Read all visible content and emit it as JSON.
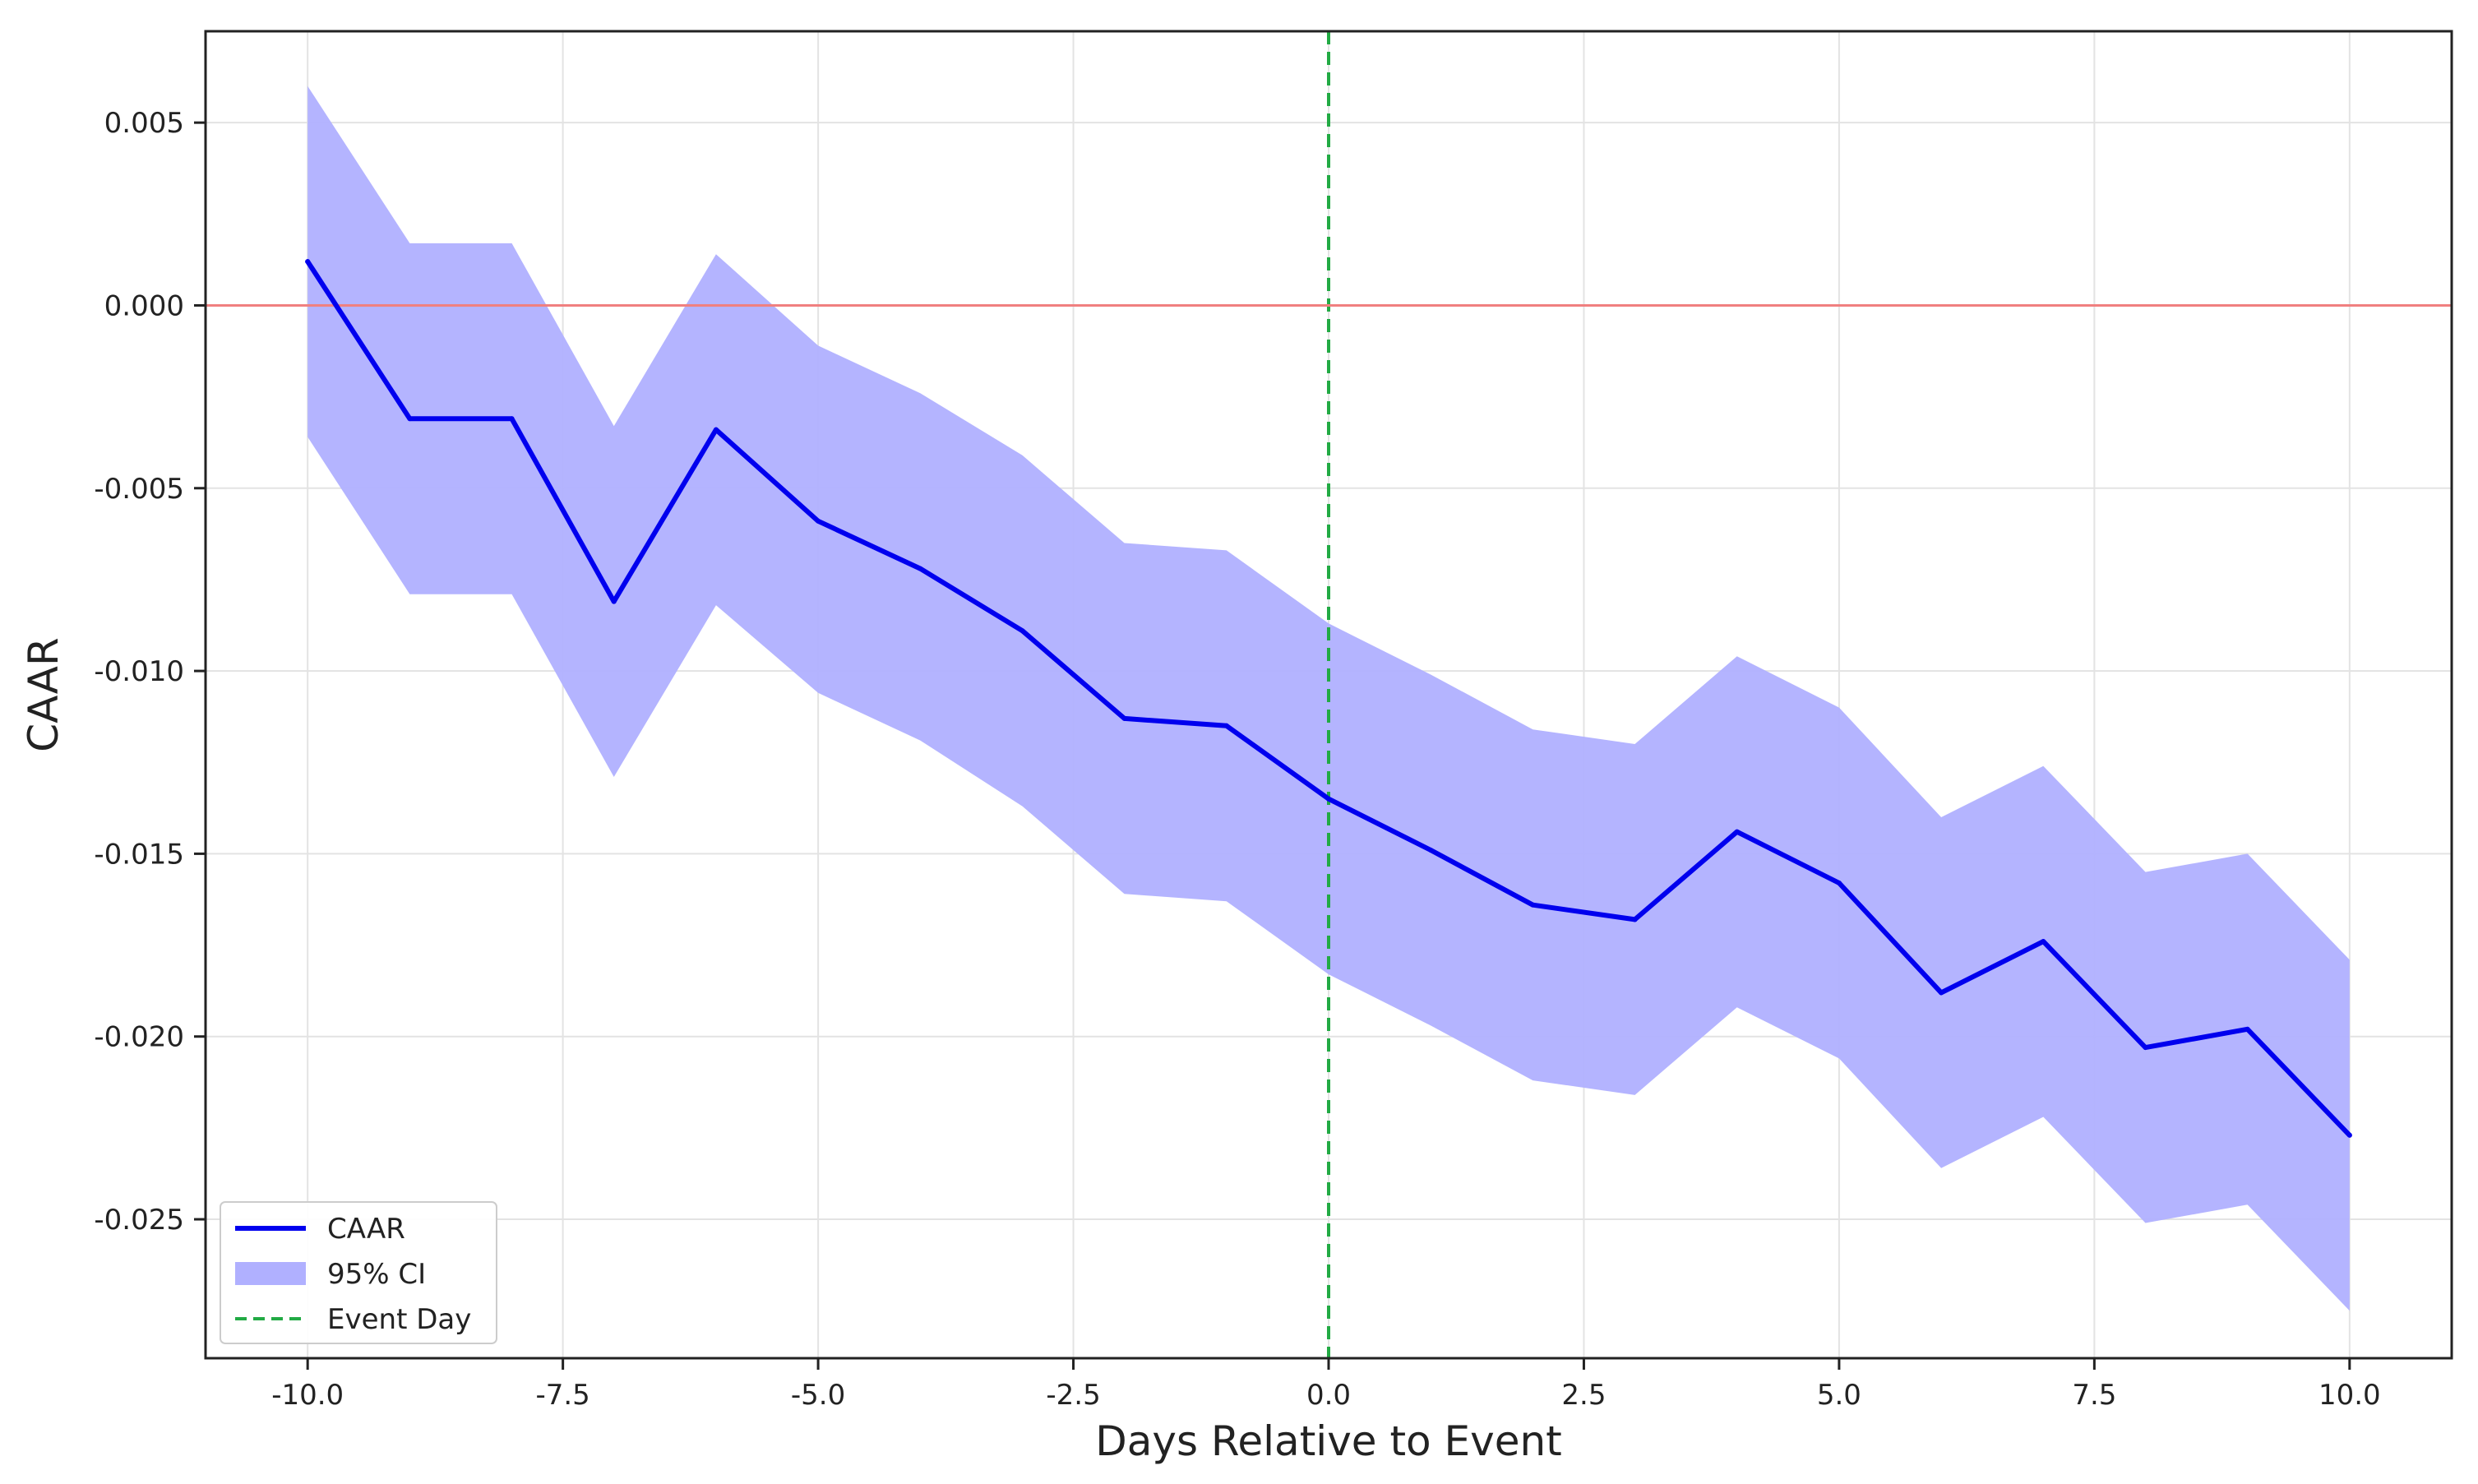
{
  "chart_data": {
    "type": "line",
    "title": "",
    "xlabel": "Days Relative to Event",
    "ylabel": "CAAR",
    "xlim": [
      -11.0,
      11.0
    ],
    "ylim": [
      -0.0288,
      0.0075
    ],
    "x_ticks": [
      -10.0,
      -7.5,
      -5.0,
      -2.5,
      0.0,
      2.5,
      5.0,
      7.5,
      10.0
    ],
    "x_tick_labels": [
      "-10.0",
      "-7.5",
      "-5.0",
      "-2.5",
      "0.0",
      "2.5",
      "5.0",
      "7.5",
      "10.0"
    ],
    "y_ticks": [
      0.005,
      0.0,
      -0.005,
      -0.01,
      -0.015,
      -0.02,
      -0.025
    ],
    "y_tick_labels": [
      "0.005",
      "0.000",
      "-0.005",
      "-0.010",
      "-0.015",
      "-0.020",
      "-0.025"
    ],
    "grid": true,
    "legend_position": "lower-left",
    "x": [
      -10,
      -9,
      -8,
      -7,
      -6,
      -5,
      -4,
      -3,
      -2,
      -1,
      0,
      1,
      2,
      3,
      4,
      5,
      6,
      7,
      8,
      9,
      10
    ],
    "series": [
      {
        "name": "CAAR",
        "kind": "line",
        "color": "#0000ee",
        "values": [
          0.0012,
          -0.0031,
          -0.0031,
          -0.0081,
          -0.0034,
          -0.0059,
          -0.0072,
          -0.0089,
          -0.0113,
          -0.0115,
          -0.0135,
          -0.0149,
          -0.0164,
          -0.0168,
          -0.0144,
          -0.0158,
          -0.0188,
          -0.0174,
          -0.0203,
          -0.0198,
          -0.0227
        ]
      },
      {
        "name": "95% CI",
        "kind": "band",
        "color": "#b0b0ff",
        "lower": [
          -0.0036,
          -0.0079,
          -0.0079,
          -0.0129,
          -0.0082,
          -0.0106,
          -0.0119,
          -0.0137,
          -0.0161,
          -0.0163,
          -0.0183,
          -0.0197,
          -0.0212,
          -0.0216,
          -0.0192,
          -0.0206,
          -0.0236,
          -0.0222,
          -0.0251,
          -0.0246,
          -0.0275
        ],
        "upper": [
          0.006,
          0.0017,
          0.0017,
          -0.0033,
          0.0014,
          -0.0011,
          -0.0024,
          -0.0041,
          -0.0065,
          -0.0067,
          -0.0087,
          -0.0101,
          -0.0116,
          -0.012,
          -0.0096,
          -0.011,
          -0.014,
          -0.0126,
          -0.0155,
          -0.015,
          -0.0179
        ]
      }
    ],
    "reference_lines": [
      {
        "name": "Event Day",
        "orientation": "vertical",
        "value": 0.0,
        "color": "#22aa44",
        "style": "dashed"
      },
      {
        "orientation": "horizontal",
        "value": 0.0,
        "color": "#f08080",
        "style": "solid"
      }
    ],
    "legend": [
      {
        "label": "CAAR",
        "kind": "line",
        "color": "#0000ee"
      },
      {
        "label": "95% CI",
        "kind": "band",
        "color": "#b0b0ff"
      },
      {
        "label": "Event Day",
        "kind": "dashed",
        "color": "#22aa44"
      }
    ]
  }
}
